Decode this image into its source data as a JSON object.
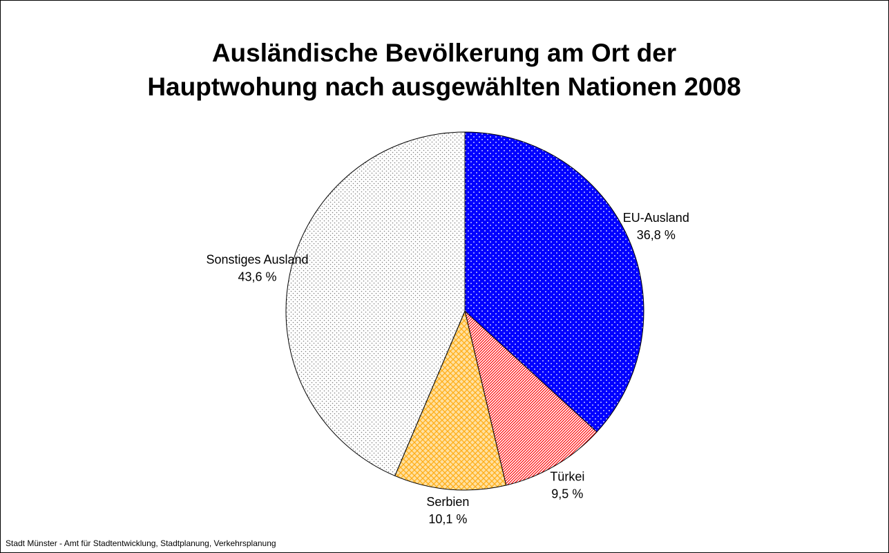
{
  "chart_data": {
    "type": "pie",
    "title": [
      "Ausländische Bevölkerung am Ort der",
      "Hauptwohung nach ausgewählten Nationen 2008"
    ],
    "categories": [
      "EU-Ausland",
      "Türkei",
      "Serbien",
      "Sonstiges Ausland"
    ],
    "values": [
      36.8,
      9.5,
      10.1,
      43.6
    ],
    "value_labels": [
      "36,8 %",
      "9,5 %",
      "10,1 %",
      "43,6 %"
    ],
    "colors": [
      "#0000ff",
      "#ff0000",
      "#ffa500",
      "#808080"
    ],
    "source": "Stadt Münster - Amt für Stadtentwicklung, Stadtplanung, Verkehrsplanung"
  }
}
